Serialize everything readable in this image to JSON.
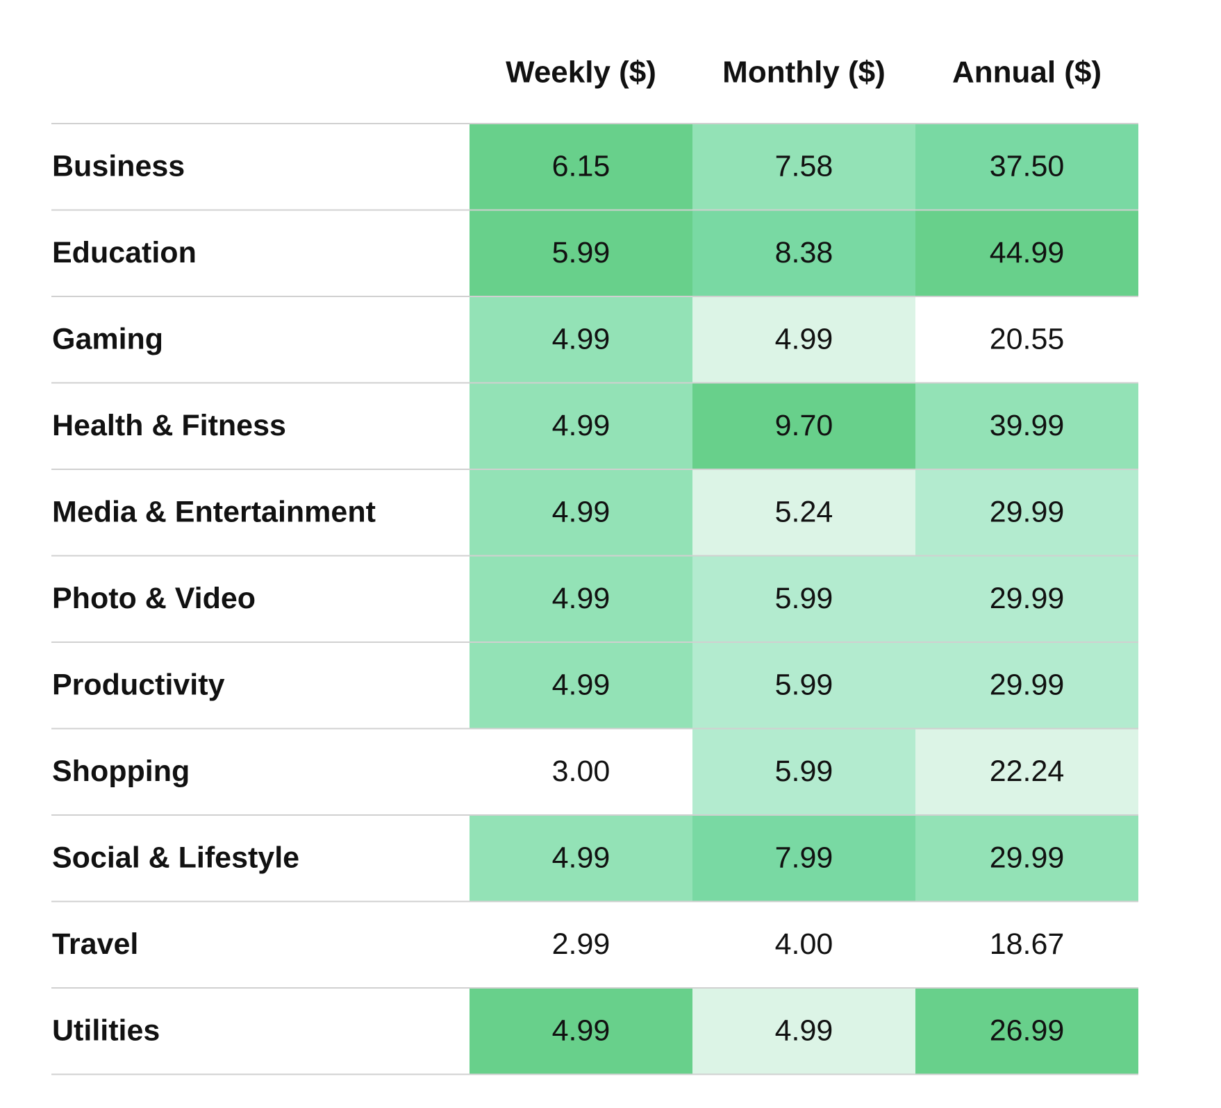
{
  "chart_data": {
    "type": "heatmap",
    "title": "",
    "columns": [
      "Weekly ($)",
      "Monthly ($)",
      "Annual ($)"
    ],
    "rows": [
      {
        "label": "Business",
        "values": [
          "6.15",
          "7.58",
          "37.50"
        ],
        "shade": [
          4,
          2,
          3
        ]
      },
      {
        "label": "Education",
        "values": [
          "5.99",
          "8.38",
          "44.99"
        ],
        "shade": [
          4,
          3,
          4
        ]
      },
      {
        "label": "Gaming",
        "values": [
          "4.99",
          "4.99",
          "20.55"
        ],
        "shade": [
          2,
          0,
          -1
        ]
      },
      {
        "label": "Health & Fitness",
        "values": [
          "4.99",
          "9.70",
          "39.99"
        ],
        "shade": [
          2,
          4,
          2
        ]
      },
      {
        "label": "Media & Entertainment",
        "values": [
          "4.99",
          "5.24",
          "29.99"
        ],
        "shade": [
          2,
          0,
          1
        ]
      },
      {
        "label": "Photo & Video",
        "values": [
          "4.99",
          "5.99",
          "29.99"
        ],
        "shade": [
          2,
          1,
          1
        ]
      },
      {
        "label": "Productivity",
        "values": [
          "4.99",
          "5.99",
          "29.99"
        ],
        "shade": [
          2,
          1,
          1
        ]
      },
      {
        "label": "Shopping",
        "values": [
          "3.00",
          "5.99",
          "22.24"
        ],
        "shade": [
          -1,
          1,
          0
        ]
      },
      {
        "label": "Social & Lifestyle",
        "values": [
          "4.99",
          "7.99",
          "29.99"
        ],
        "shade": [
          2,
          3,
          2
        ]
      },
      {
        "label": "Travel",
        "values": [
          "2.99",
          "4.00",
          "18.67"
        ],
        "shade": [
          -1,
          -1,
          -1
        ]
      },
      {
        "label": "Utilities",
        "values": [
          "4.99",
          "4.99",
          "26.99"
        ],
        "shade": [
          4,
          0,
          4
        ]
      }
    ],
    "palette": [
      "#dcf4e6",
      "#b3ebcf",
      "#93e2b6",
      "#79d9a3",
      "#68d08b"
    ],
    "grid": true,
    "legend": "none"
  },
  "colors": {
    "text": "#111111",
    "divider": "#d0d0d0",
    "background": "#ffffff"
  }
}
